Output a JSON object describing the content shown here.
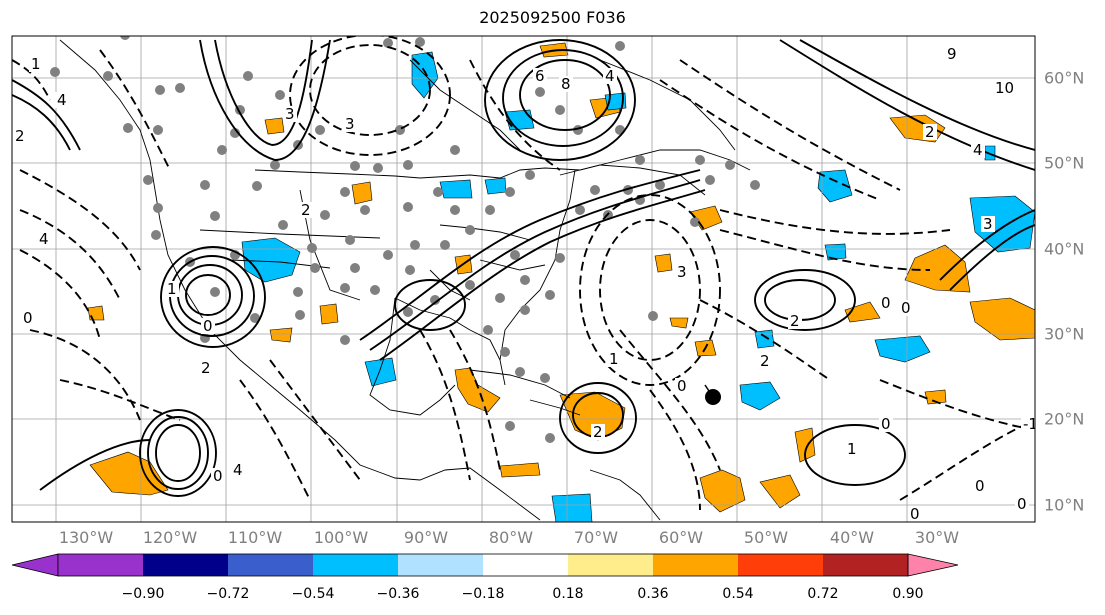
{
  "title": "2025092500 F036",
  "map": {
    "lon_labels": [
      "130°W",
      "120°W",
      "110°W",
      "100°W",
      "90°W",
      "80°W",
      "70°W",
      "60°W",
      "50°W",
      "40°W",
      "30°W"
    ],
    "lat_labels": [
      "60°N",
      "50°N",
      "40°N",
      "30°N",
      "20°N",
      "10°N"
    ],
    "contour_labels": [
      "1",
      "4",
      "2",
      "6",
      "8",
      "4",
      "3",
      "10",
      "9",
      "4",
      "2",
      "3",
      "4",
      "1",
      "0",
      "0",
      "2",
      "0",
      "3",
      "2",
      "4",
      "0",
      "1",
      "0",
      "2",
      "0",
      "0",
      "0",
      "2",
      "3",
      "-1",
      "1",
      "0",
      "0",
      "2"
    ],
    "grid": true,
    "coastlines": true,
    "colors": {
      "positive": "#ffa500",
      "negative": "#00bfff",
      "station": "#808080",
      "contour": "#000000"
    }
  },
  "colorbar": {
    "ticks": [
      "−0.90",
      "−0.72",
      "−0.54",
      "−0.36",
      "−0.18",
      "0.18",
      "0.36",
      "0.54",
      "0.72",
      "0.90"
    ],
    "colors": [
      "#9932cc",
      "#00008b",
      "#3a5fcd",
      "#00bfff",
      "#b0e2ff",
      "#ffffff",
      "#ffec8b",
      "#ffa500",
      "#ff3e0a",
      "#b22222",
      "#ff82ab"
    ]
  }
}
